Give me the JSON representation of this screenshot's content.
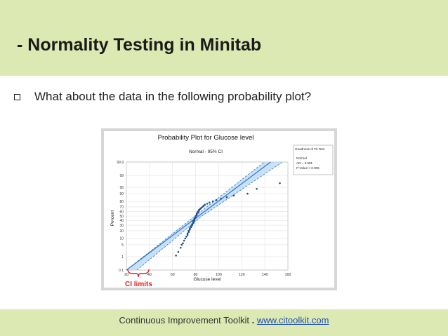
{
  "slide": {
    "title": "- Normality Testing in Minitab",
    "bullet": "What about the data in the following probability plot?"
  },
  "plot": {
    "title": "Probability Plot for Glucose level",
    "subtitle": "Normal - 95% CI",
    "legend": {
      "heading": "Goodness of Fit Test",
      "lines": [
        "Normal",
        "AD = 3.591",
        "P-Value < 0.005"
      ]
    },
    "annotation": "CI limits"
  },
  "chart_data": {
    "type": "scatter",
    "title": "Probability Plot for Glucose level",
    "subtitle": "Normal - 95% CI",
    "xlabel": "Glucose level",
    "ylabel": "Percent",
    "xlim": [
      20,
      160
    ],
    "x_ticks": [
      "20",
      "40",
      "60",
      "80",
      "100",
      "120",
      "140",
      "160"
    ],
    "y_ticks": [
      "0.1",
      "1",
      "5",
      "10",
      "20",
      "30",
      "40",
      "50",
      "60",
      "70",
      "80",
      "90",
      "95",
      "99",
      "99.9"
    ],
    "y_scale": "normal-probability",
    "grid": true,
    "legend_position": "top-right",
    "series": [
      {
        "name": "Glucose level",
        "points": [
          [
            63,
            1.2
          ],
          [
            65,
            2
          ],
          [
            67,
            3.5
          ],
          [
            68,
            5
          ],
          [
            69,
            6
          ],
          [
            70,
            8
          ],
          [
            71,
            10
          ],
          [
            72,
            12
          ],
          [
            73,
            14
          ],
          [
            73,
            16
          ],
          [
            74,
            18
          ],
          [
            74,
            20
          ],
          [
            75,
            22
          ],
          [
            75,
            24
          ],
          [
            76,
            26
          ],
          [
            76,
            28
          ],
          [
            77,
            30
          ],
          [
            77,
            32
          ],
          [
            78,
            34
          ],
          [
            78,
            36
          ],
          [
            78,
            38
          ],
          [
            79,
            40
          ],
          [
            79,
            42
          ],
          [
            79,
            44
          ],
          [
            80,
            46
          ],
          [
            80,
            48
          ],
          [
            80,
            50
          ],
          [
            81,
            52
          ],
          [
            81,
            54
          ],
          [
            81,
            56
          ],
          [
            82,
            58
          ],
          [
            82,
            60
          ],
          [
            83,
            62
          ],
          [
            83,
            64
          ],
          [
            84,
            66
          ],
          [
            85,
            68
          ],
          [
            86,
            70
          ],
          [
            87,
            72
          ],
          [
            88,
            74
          ],
          [
            90,
            76
          ],
          [
            92,
            78
          ],
          [
            95,
            80
          ],
          [
            98,
            82
          ],
          [
            102,
            84
          ],
          [
            107,
            86
          ],
          [
            113,
            88
          ],
          [
            125,
            90
          ],
          [
            133,
            94
          ],
          [
            153,
            97
          ]
        ]
      }
    ],
    "fit_line": [
      [
        20,
        0.1
      ],
      [
        145,
        99.9
      ]
    ],
    "ci_band": true
  },
  "footer": {
    "text": "Continuous Improvement Toolkit",
    "separator": ".",
    "link": "www.citoolkit.com"
  },
  "colors": {
    "band": "#dde9b3",
    "ci_fill": "#bcd8f2",
    "fit_line": "#2e78c7",
    "points": "#1c4f8c",
    "annotation": "#d8222a"
  }
}
